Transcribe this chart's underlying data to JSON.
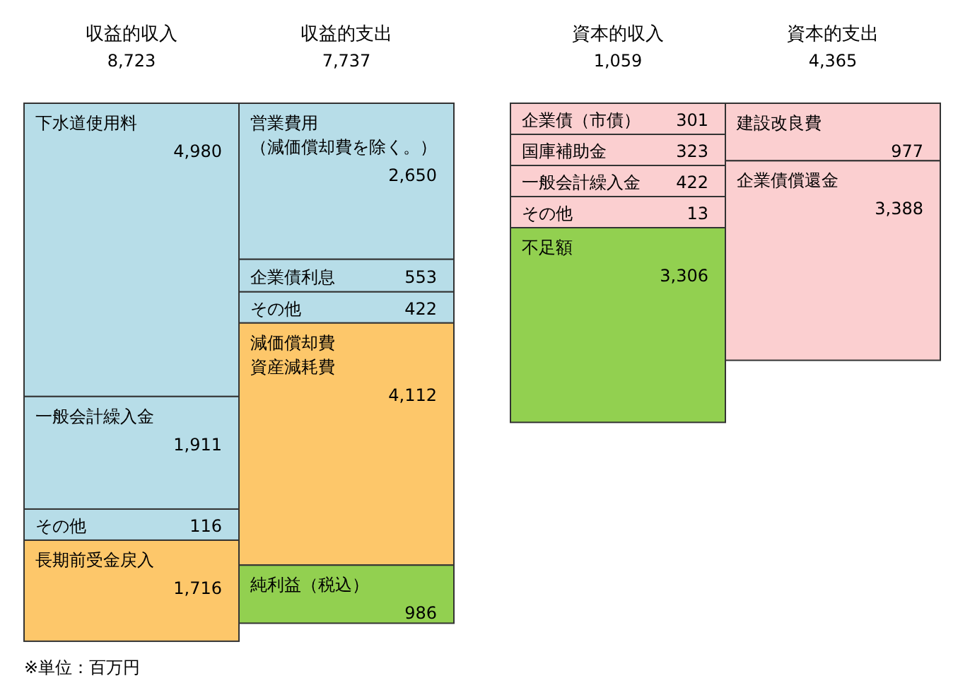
{
  "chart_data": {
    "type": "other",
    "categories": [
      "収益的収入",
      "収益的支出",
      "資本的収入",
      "資本的支出"
    ],
    "totals": [
      "8,723",
      "7,737",
      "1,059",
      "4,365"
    ],
    "series": [
      {
        "name": "下水道使用料",
        "color": "#b7dde8",
        "values": [
          4980,
          null,
          null,
          null
        ],
        "value_labels": [
          "4,980",
          null,
          null,
          null
        ]
      },
      {
        "name": "一般会計繰入金",
        "color": "#b7dde8",
        "values": [
          1911,
          null,
          null,
          null
        ],
        "value_labels": [
          "1,911",
          null,
          null,
          null
        ]
      },
      {
        "name": "その他",
        "color": "#b7dde8",
        "values": [
          116,
          null,
          null,
          null
        ],
        "value_labels": [
          "116",
          null,
          null,
          null
        ]
      },
      {
        "name": "長期前受金戻入",
        "color": "#fdc76a",
        "values": [
          1716,
          null,
          null,
          null
        ],
        "value_labels": [
          "1,716",
          null,
          null,
          null
        ]
      },
      {
        "name": "営業費用（減価償却費を除く。）",
        "color": "#b7dde8",
        "values": [
          null,
          2650,
          null,
          null
        ],
        "value_labels": [
          null,
          "2,650",
          null,
          null
        ]
      },
      {
        "name": "企業債利息",
        "color": "#b7dde8",
        "values": [
          null,
          553,
          null,
          null
        ],
        "value_labels": [
          null,
          "553",
          null,
          null
        ]
      },
      {
        "name": "その他",
        "color": "#b7dde8",
        "values": [
          null,
          422,
          null,
          null
        ],
        "value_labels": [
          null,
          "422",
          null,
          null
        ]
      },
      {
        "name": "減価償却費資産減耗費",
        "color": "#fdc76a",
        "values": [
          null,
          4112,
          null,
          null
        ],
        "value_labels": [
          null,
          "4,112",
          null,
          null
        ]
      },
      {
        "name": "純利益（税込）",
        "color": "#92d050",
        "values": [
          null,
          986,
          null,
          null
        ],
        "value_labels": [
          null,
          "986",
          null,
          null
        ]
      },
      {
        "name": "企業債（市債）",
        "color": "#fbcfd0",
        "values": [
          null,
          null,
          301,
          null
        ],
        "value_labels": [
          null,
          null,
          "301",
          null
        ]
      },
      {
        "name": "国庫補助金",
        "color": "#fbcfd0",
        "values": [
          null,
          null,
          323,
          null
        ],
        "value_labels": [
          null,
          null,
          "323",
          null
        ]
      },
      {
        "name": "一般会計繰入金",
        "color": "#fbcfd0",
        "values": [
          null,
          null,
          422,
          null
        ],
        "value_labels": [
          null,
          null,
          "422",
          null
        ]
      },
      {
        "name": "その他",
        "color": "#fbcfd0",
        "values": [
          null,
          null,
          13,
          null
        ],
        "value_labels": [
          null,
          null,
          "13",
          null
        ]
      },
      {
        "name": "不足額",
        "color": "#92d050",
        "values": [
          null,
          null,
          3306,
          null
        ],
        "value_labels": [
          null,
          null,
          "3,306",
          null
        ]
      },
      {
        "name": "建設改良費",
        "color": "#fbcfd0",
        "values": [
          null,
          null,
          null,
          977
        ],
        "value_labels": [
          null,
          null,
          null,
          "977"
        ]
      },
      {
        "name": "企業債償還金",
        "color": "#fbcfd0",
        "values": [
          null,
          null,
          null,
          3388
        ],
        "value_labels": [
          null,
          null,
          null,
          "3,388"
        ]
      }
    ],
    "annotations": [
      "※単位：百万円"
    ]
  }
}
